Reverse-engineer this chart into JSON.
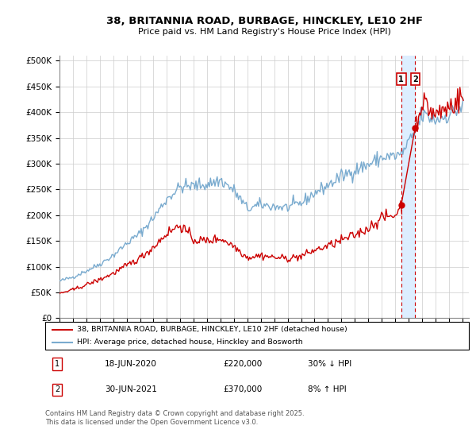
{
  "title": "38, BRITANNIA ROAD, BURBAGE, HINCKLEY, LE10 2HF",
  "subtitle": "Price paid vs. HM Land Registry's House Price Index (HPI)",
  "xlim_start": 1995.0,
  "xlim_end": 2025.5,
  "ylim_min": 0,
  "ylim_max": 510000,
  "yticks": [
    0,
    50000,
    100000,
    150000,
    200000,
    250000,
    300000,
    350000,
    400000,
    450000,
    500000
  ],
  "ytick_labels": [
    "£0",
    "£50K",
    "£100K",
    "£150K",
    "£200K",
    "£250K",
    "£300K",
    "£350K",
    "£400K",
    "£450K",
    "£500K"
  ],
  "legend1": "38, BRITANNIA ROAD, BURBAGE, HINCKLEY, LE10 2HF (detached house)",
  "legend2": "HPI: Average price, detached house, Hinckley and Bosworth",
  "sale1_date": "18-JUN-2020",
  "sale1_price": "£220,000",
  "sale1_hpi": "30% ↓ HPI",
  "sale1_year": 2020.46,
  "sale2_date": "30-JUN-2021",
  "sale2_price": "£370,000",
  "sale2_hpi": "8% ↑ HPI",
  "sale2_year": 2021.5,
  "sale1_value": 220000,
  "sale2_value": 370000,
  "red_color": "#cc0000",
  "blue_color": "#7aabcf",
  "band_color": "#ddeeff",
  "footnote": "Contains HM Land Registry data © Crown copyright and database right 2025.\nThis data is licensed under the Open Government Licence v3.0."
}
